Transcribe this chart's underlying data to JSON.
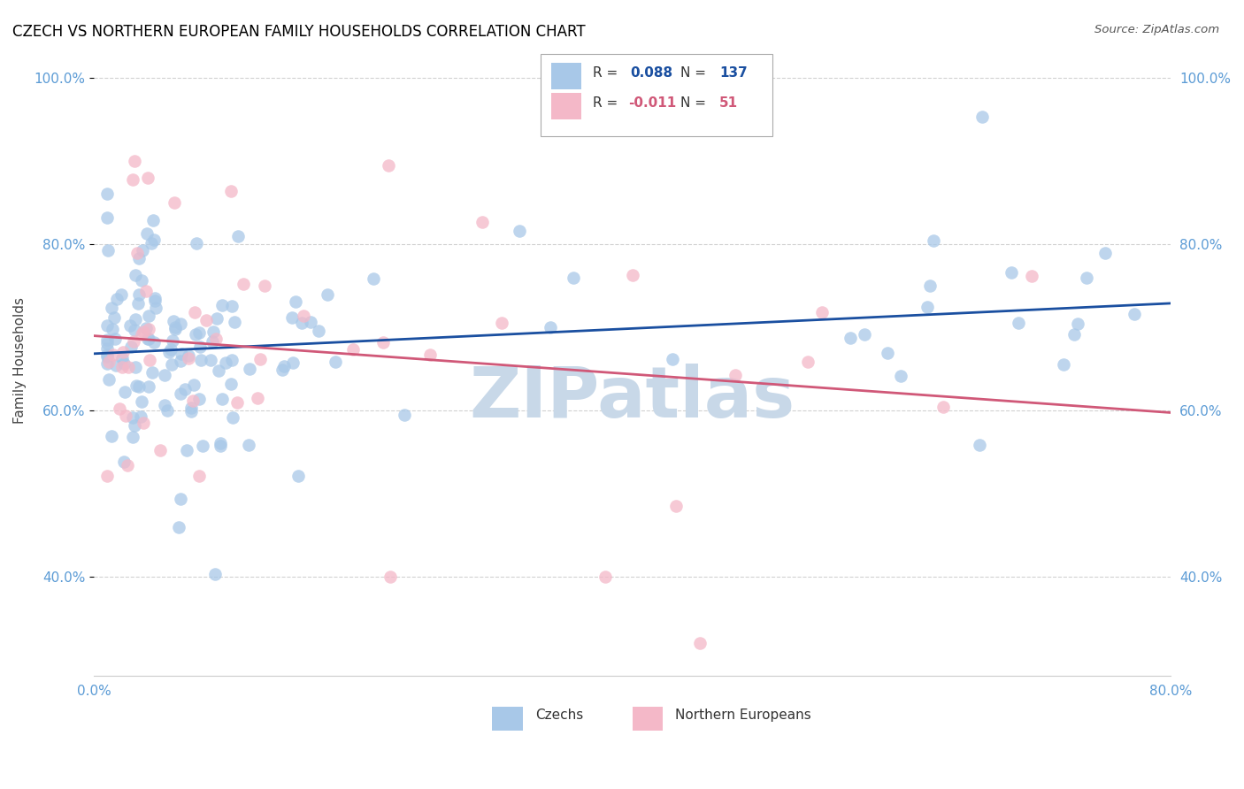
{
  "title": "CZECH VS NORTHERN EUROPEAN FAMILY HOUSEHOLDS CORRELATION CHART",
  "source": "Source: ZipAtlas.com",
  "ylabel": "Family Households",
  "xlim": [
    0.0,
    0.8
  ],
  "ylim": [
    0.28,
    1.04
  ],
  "yticks": [
    0.4,
    0.6,
    0.8,
    1.0
  ],
  "ytick_labels": [
    "40.0%",
    "60.0%",
    "80.0%",
    "100.0%"
  ],
  "xticks": [
    0.0,
    0.1,
    0.2,
    0.3,
    0.4,
    0.5,
    0.6,
    0.7,
    0.8
  ],
  "xtick_labels_show": [
    "0.0%",
    "80.0%"
  ],
  "legend_blue_label": "Czechs",
  "legend_pink_label": "Northern Europeans",
  "blue_R_val": "0.088",
  "blue_N_val": "137",
  "pink_R_val": "-0.011",
  "pink_N_val": "51",
  "blue_color": "#a8c8e8",
  "pink_color": "#f4b8c8",
  "blue_line_color": "#1a4fa0",
  "pink_line_color": "#d05878",
  "axis_label_color": "#5b9bd5",
  "title_color": "#000000",
  "background_color": "#ffffff",
  "watermark_color": "#c8d8e8",
  "grid_color": "#cccccc",
  "blue_R": 0.088,
  "pink_R": -0.011
}
